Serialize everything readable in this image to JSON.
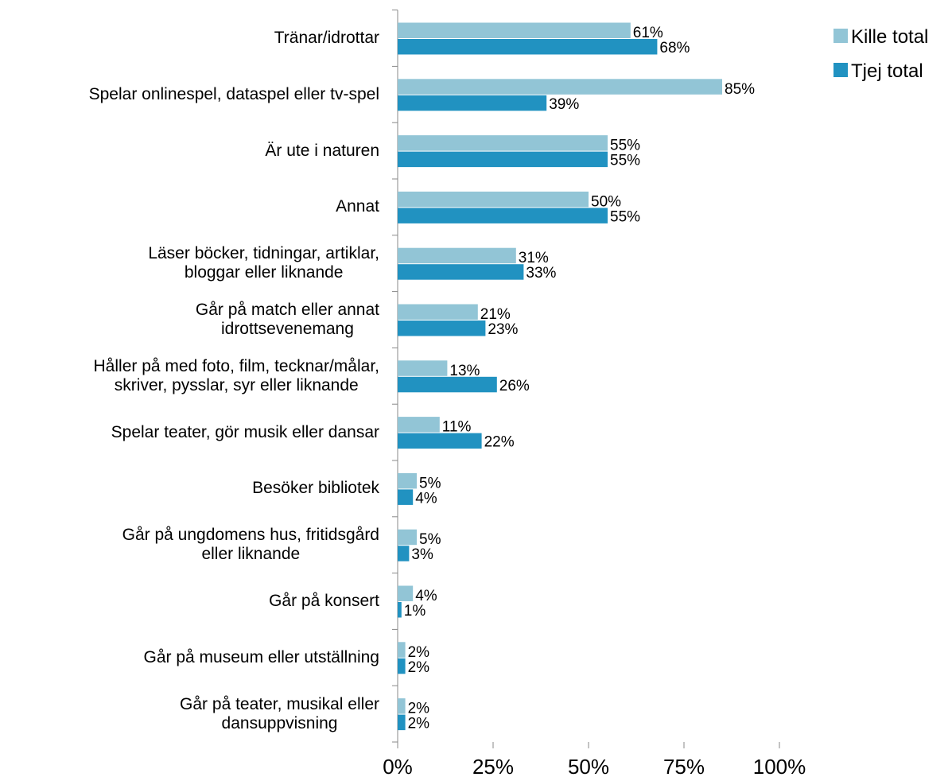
{
  "chart_data": {
    "type": "hbar",
    "categories": [
      "Tränar/idrottar",
      "Spelar onlinespel, dataspel eller tv-spel",
      "Är ute i naturen",
      "Annat",
      "Läser böcker, tidningar, artiklar,\nbloggar eller liknande",
      "Går på match eller annat\nidrottsevenemang",
      "Håller på med foto, film, tecknar/målar,\nskriver, pysslar, syr eller liknande",
      "Spelar teater, gör musik eller dansar",
      "Besöker bibliotek",
      "Går på ungdomens hus, fritidsgård\neller liknande",
      "Går på konsert",
      "Går på museum eller utställning",
      "Går på teater, musikal eller\ndansuppvisning"
    ],
    "series": [
      {
        "name": "Kille total",
        "color": "#92c5d6",
        "values": [
          61,
          85,
          55,
          50,
          31,
          21,
          13,
          11,
          5,
          5,
          4,
          2,
          2
        ],
        "value_labels": [
          "61%",
          "85%",
          "55%",
          "50%",
          "31%",
          "21%",
          "13%",
          "11%",
          "5%",
          "5%",
          "4%",
          "2%",
          "2%"
        ]
      },
      {
        "name": "Tjej total",
        "color": "#2192c1",
        "values": [
          68,
          39,
          55,
          55,
          33,
          23,
          26,
          22,
          4,
          3,
          1,
          2,
          2
        ],
        "value_labels": [
          "68%",
          "39%",
          "55%",
          "55%",
          "33%",
          "23%",
          "26%",
          "22%",
          "4%",
          "3%",
          "1%",
          "2%",
          "2%"
        ]
      }
    ],
    "xlim": [
      0,
      100
    ],
    "xticks": [
      {
        "value": 0,
        "label": "0%"
      },
      {
        "value": 25,
        "label": "25%"
      },
      {
        "value": 50,
        "label": "50%"
      },
      {
        "value": 75,
        "label": "75%"
      },
      {
        "value": 100,
        "label": "100%"
      }
    ],
    "legend": "top-right"
  }
}
